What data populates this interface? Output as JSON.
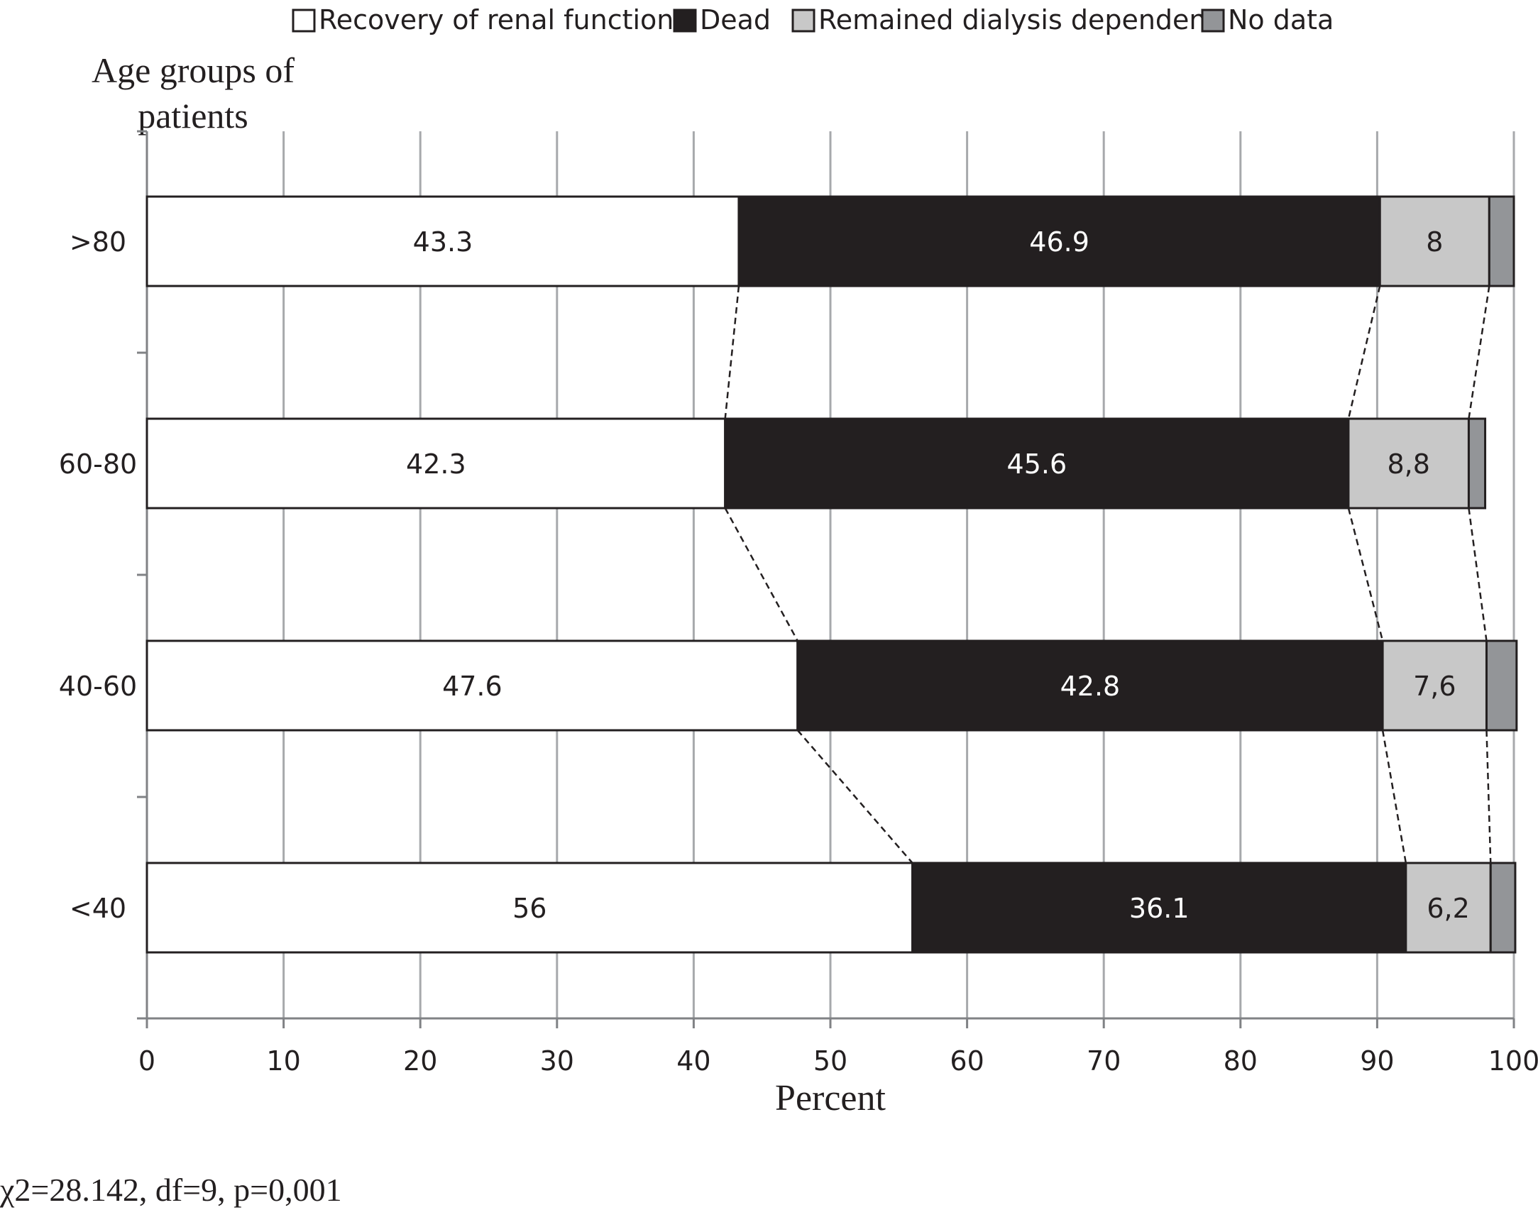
{
  "chart_data": {
    "type": "bar",
    "orientation": "horizontal",
    "stacked": true,
    "title": "",
    "ylabel": "Age groups of patients",
    "xlabel": "Percent",
    "xlim": [
      0,
      100
    ],
    "xticks": [
      0,
      10,
      20,
      30,
      40,
      50,
      60,
      70,
      80,
      90,
      100
    ],
    "categories": [
      ">80",
      "60-80",
      "40-60",
      "<40"
    ],
    "series": [
      {
        "name": "Recovery of renal function",
        "color": "#ffffff",
        "label_color": "#231f20",
        "values": [
          43.3,
          42.3,
          47.6,
          56
        ],
        "labels": [
          "43.3",
          "42.3",
          "47.6",
          "56"
        ]
      },
      {
        "name": "Dead",
        "color": "#231f20",
        "label_color": "#ffffff",
        "values": [
          46.9,
          45.6,
          42.8,
          36.1
        ],
        "labels": [
          "46.9",
          "45.6",
          "42.8",
          "36.1"
        ]
      },
      {
        "name": "Remained dialysis dependent",
        "color": "#c8c8c8",
        "label_color": "#231f20",
        "values": [
          8,
          8.8,
          7.6,
          6.2
        ],
        "labels": [
          "8",
          "8,8",
          "7,6",
          "6,2"
        ]
      },
      {
        "name": "No data",
        "color": "#939598",
        "label_color": "#231f20",
        "values": [
          1.8,
          1.2,
          2.2,
          1.8
        ],
        "labels": [
          "",
          "",
          "",
          ""
        ]
      }
    ],
    "connector_lines": true,
    "grid": "vertical",
    "legend_position": "top",
    "annotation": "χ2=28.142, df=9, p=0,001"
  }
}
